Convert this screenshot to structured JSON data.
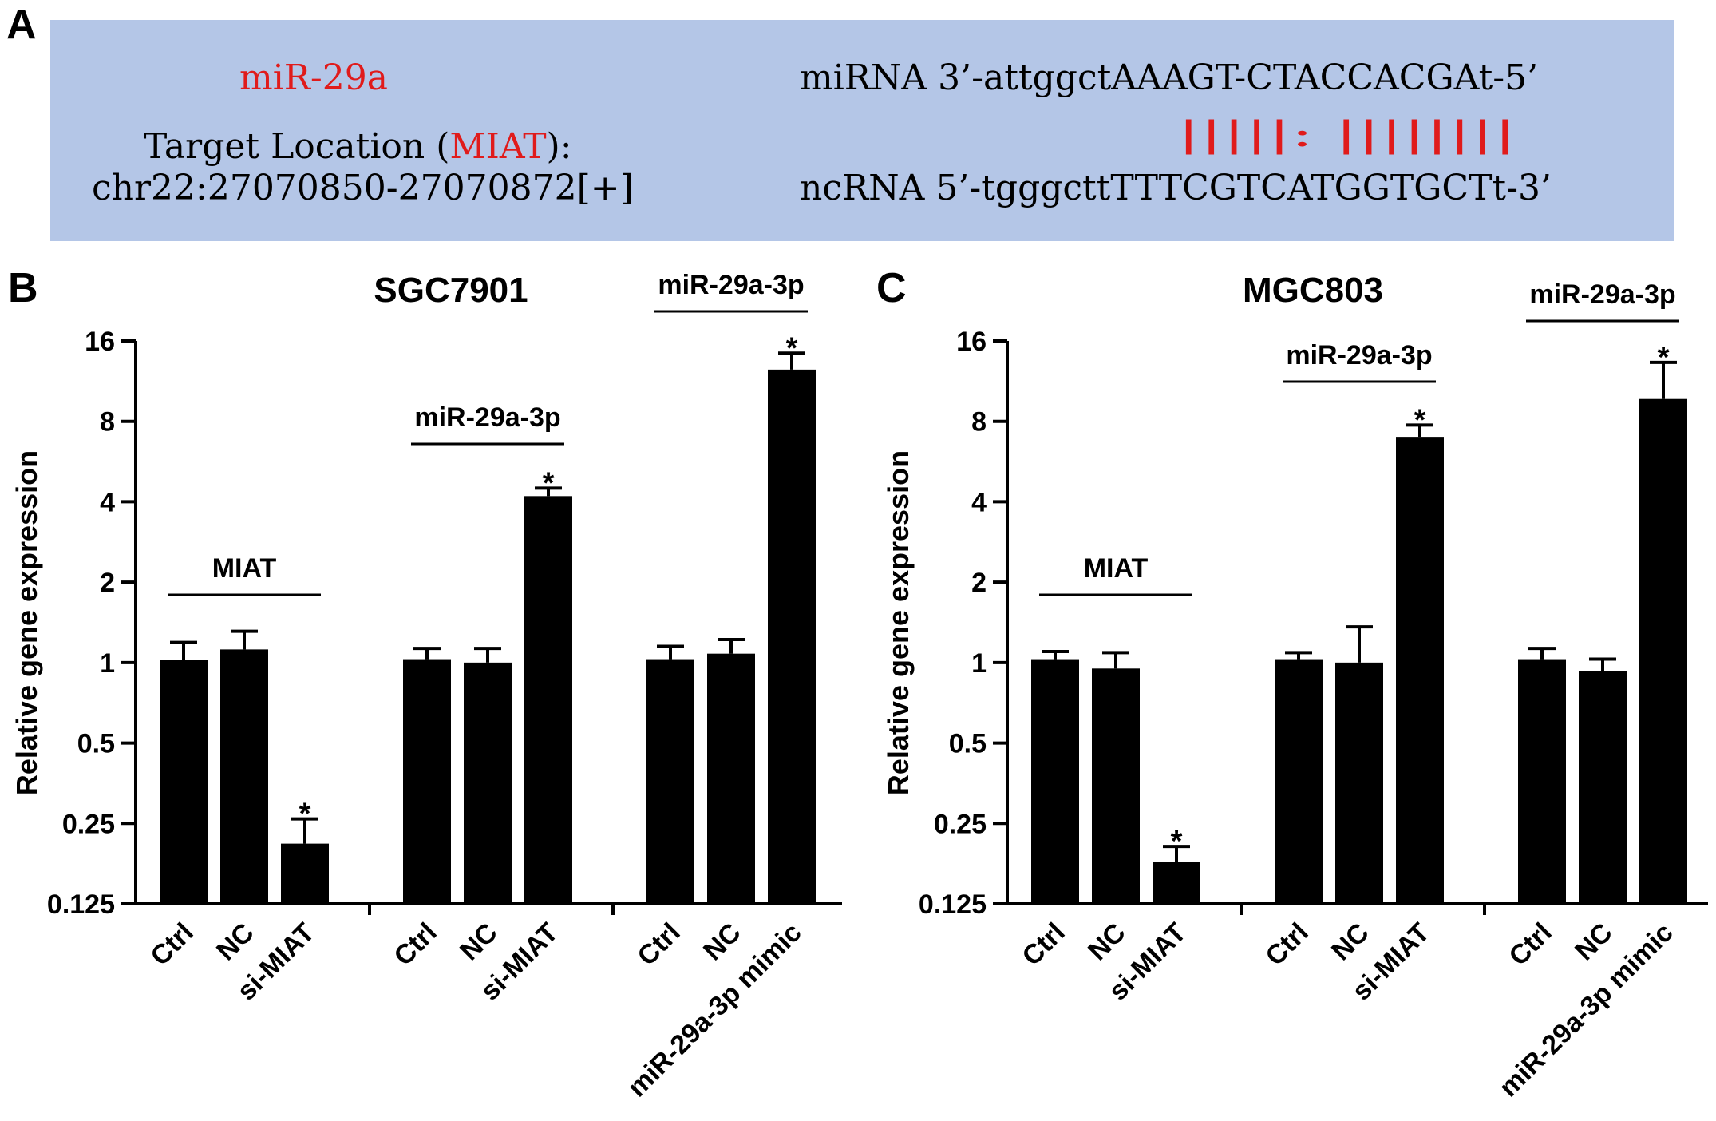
{
  "panel_a": {
    "label": "A",
    "mirna_name": "miR-29a",
    "target_location_prefix": "Target Location (",
    "target_gene": "MIAT",
    "target_location_suffix": "):",
    "coordinates": "chr22:27070850-27070872[+]",
    "mirna_line": "miRNA 3’-attggctAAAGT-CTACCACGAt-5’",
    "pairing_line": "|||||: ||||||||",
    "ncrna_line": "ncRNA 5’-tgggcttTTTCGTCATGGTGCTt-3’",
    "background_color": "#b4c6e7",
    "highlight_color": "#e01b1b"
  },
  "y_axis_label": "Relative gene expression",
  "chart_data": [
    {
      "panel": "B",
      "type": "bar",
      "title": "SGC7901",
      "ylabel": "Relative gene expression",
      "yscale": "log2",
      "ylim": [
        0.125,
        16
      ],
      "yticks": [
        "0.125",
        "0.25",
        "0.5",
        "1",
        "2",
        "4",
        "8",
        "16"
      ],
      "groups": [
        {
          "bracket": "MIAT",
          "categories": [
            "Ctrl",
            "NC",
            "si-MIAT"
          ],
          "values": [
            1.02,
            1.12,
            0.21
          ],
          "errors": [
            0.17,
            0.19,
            0.05
          ],
          "significant": [
            false,
            false,
            true
          ]
        },
        {
          "bracket": "miR-29a-3p",
          "categories": [
            "Ctrl",
            "NC",
            "si-MIAT"
          ],
          "values": [
            1.03,
            1.0,
            4.2
          ],
          "errors": [
            0.1,
            0.13,
            0.3
          ],
          "significant": [
            false,
            false,
            true
          ]
        },
        {
          "bracket": "miR-29a-3p",
          "categories": [
            "Ctrl",
            "NC",
            "miR-29a-3p mimic"
          ],
          "values": [
            1.03,
            1.08,
            12.5
          ],
          "errors": [
            0.12,
            0.14,
            1.9
          ],
          "significant": [
            false,
            false,
            true
          ]
        }
      ]
    },
    {
      "panel": "C",
      "type": "bar",
      "title": "MGC803",
      "ylabel": "Relative gene expression",
      "yscale": "log2",
      "ylim": [
        0.125,
        16
      ],
      "yticks": [
        "0.125",
        "0.25",
        "0.5",
        "1",
        "2",
        "4",
        "8",
        "16"
      ],
      "groups": [
        {
          "bracket": "MIAT",
          "categories": [
            "Ctrl",
            "NC",
            "si-MIAT"
          ],
          "values": [
            1.03,
            0.95,
            0.18
          ],
          "errors": [
            0.07,
            0.14,
            0.025
          ],
          "significant": [
            false,
            false,
            true
          ]
        },
        {
          "bracket": "miR-29a-3p",
          "categories": [
            "Ctrl",
            "NC",
            "si-MIAT"
          ],
          "values": [
            1.03,
            1.0,
            7.0
          ],
          "errors": [
            0.06,
            0.36,
            0.75
          ],
          "significant": [
            false,
            false,
            true
          ]
        },
        {
          "bracket": "miR-29a-3p",
          "categories": [
            "Ctrl",
            "NC",
            "miR-29a-3p mimic"
          ],
          "values": [
            1.03,
            0.93,
            9.7
          ],
          "errors": [
            0.1,
            0.1,
            3.6
          ],
          "significant": [
            false,
            false,
            true
          ]
        }
      ]
    }
  ]
}
